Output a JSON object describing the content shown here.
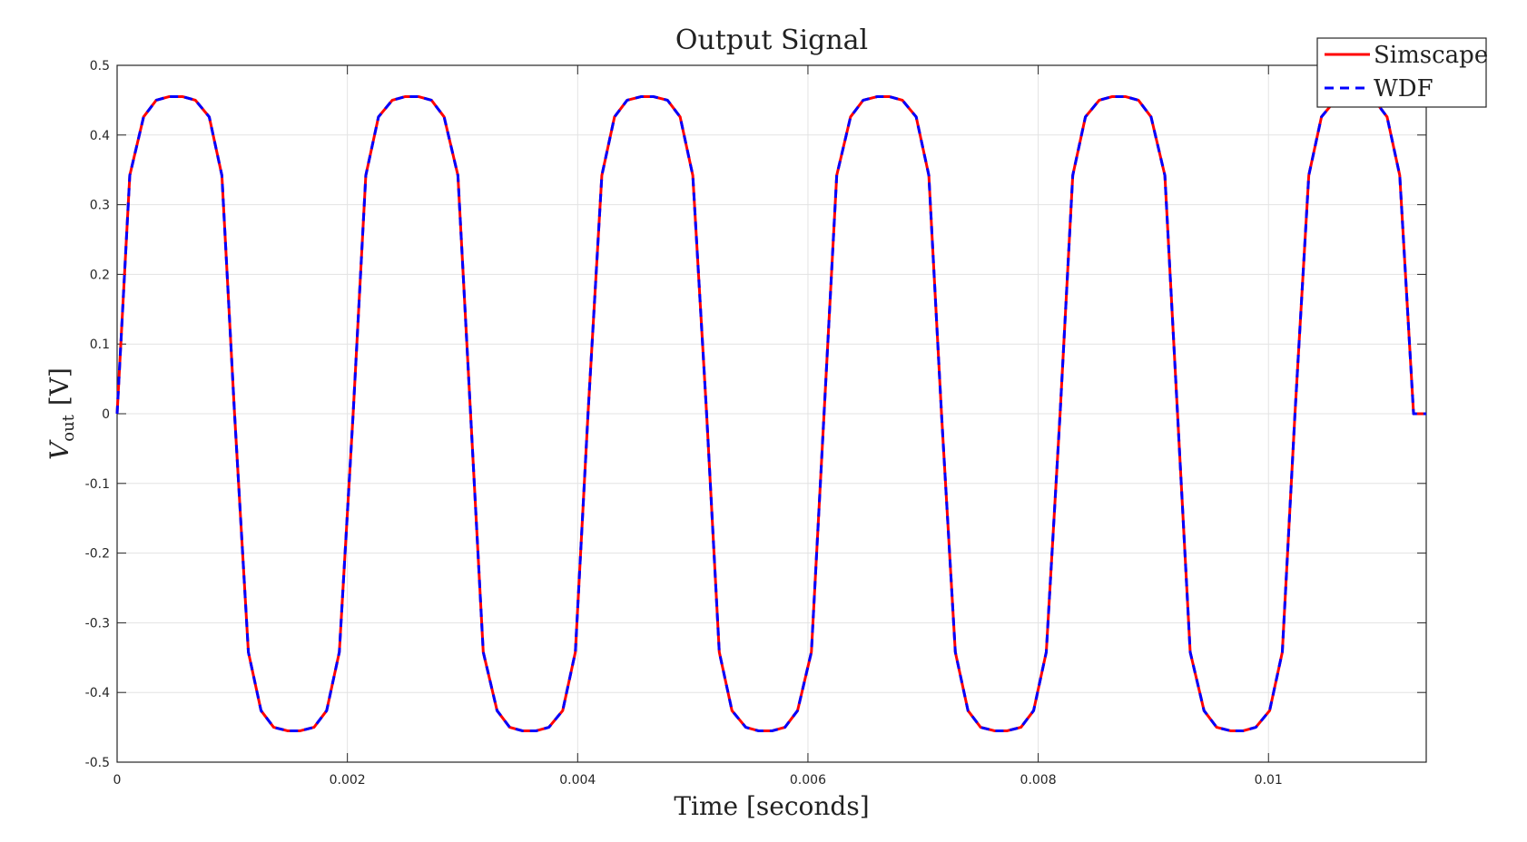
{
  "chart_data": {
    "type": "line",
    "title": "Output Signal",
    "xlabel": "Time [seconds]",
    "ylabel": {
      "symbol": "V",
      "subscript": "out",
      "unit": "[V]"
    },
    "xlim": [
      0,
      0.01137
    ],
    "ylim": [
      -0.5,
      0.5
    ],
    "xticks": [
      0,
      0.002,
      0.004,
      0.006,
      0.008,
      0.01
    ],
    "xtick_labels": [
      "0",
      "0.002",
      "0.004",
      "0.006",
      "0.008",
      "0.01"
    ],
    "yticks": [
      0.5,
      0.4,
      0.3,
      0.2,
      0.1,
      0,
      -0.1,
      -0.2,
      -0.3,
      -0.4,
      -0.5
    ],
    "ytick_labels": [
      "0.5",
      "0.4",
      "0.3",
      "0.2",
      "0.1",
      "0",
      "-0.1",
      "-0.2",
      "-0.3",
      "-0.4",
      "-0.5"
    ],
    "grid": true,
    "legend_position": "top-right",
    "series": [
      {
        "name": "Simscape",
        "color": "#ff0000",
        "line_style": "solid",
        "x": [
          0,
          0.00011,
          0.00023,
          0.00034,
          0.00045,
          0.00057,
          0.00068,
          0.0008,
          0.00091,
          0.00102,
          0.00114,
          0.00125,
          0.00136,
          0.00148,
          0.00159,
          0.00171,
          0.00182,
          0.00193,
          0.00205,
          0.00216,
          0.00227,
          0.00239,
          0.0025,
          0.00262,
          0.00273,
          0.00284,
          0.00296,
          0.00307,
          0.00318,
          0.0033,
          0.00341,
          0.00352,
          0.00364,
          0.00375,
          0.00387,
          0.00398,
          0.00409,
          0.00421,
          0.00432,
          0.00443,
          0.00455,
          0.00466,
          0.00478,
          0.00489,
          0.005,
          0.00512,
          0.00523,
          0.00534,
          0.00546,
          0.00557,
          0.00569,
          0.0058,
          0.00591,
          0.00603,
          0.00614,
          0.00625,
          0.00637,
          0.00648,
          0.0066,
          0.00671,
          0.00682,
          0.00694,
          0.00705,
          0.00716,
          0.00728,
          0.00739,
          0.0075,
          0.00762,
          0.00773,
          0.00785,
          0.00796,
          0.00807,
          0.00819,
          0.0083,
          0.00841,
          0.00853,
          0.00864,
          0.00876,
          0.00887,
          0.00898,
          0.0091,
          0.00921,
          0.00932,
          0.00944,
          0.00955,
          0.00967,
          0.00978,
          0.00989,
          0.01001,
          0.01012,
          0.01023,
          0.01035,
          0.01046,
          0.01058,
          0.01069,
          0.0108,
          0.01092,
          0.01103,
          0.01114,
          0.01126,
          0.01137
        ],
        "y": [
          0,
          0.342,
          0.426,
          0.45,
          0.455,
          0.455,
          0.45,
          0.426,
          0.342,
          0,
          -0.342,
          -0.426,
          -0.45,
          -0.455,
          -0.455,
          -0.45,
          -0.426,
          -0.342,
          0,
          0.342,
          0.426,
          0.45,
          0.455,
          0.455,
          0.45,
          0.426,
          0.342,
          0,
          -0.342,
          -0.426,
          -0.45,
          -0.455,
          -0.455,
          -0.45,
          -0.426,
          -0.342,
          0,
          0.342,
          0.426,
          0.45,
          0.455,
          0.455,
          0.45,
          0.426,
          0.342,
          0,
          -0.342,
          -0.426,
          -0.45,
          -0.455,
          -0.455,
          -0.45,
          -0.426,
          -0.342,
          0,
          0.342,
          0.426,
          0.45,
          0.455,
          0.455,
          0.45,
          0.426,
          0.342,
          0,
          -0.342,
          -0.426,
          -0.45,
          -0.455,
          -0.455,
          -0.45,
          -0.426,
          -0.342,
          0,
          0.342,
          0.426,
          0.45,
          0.455,
          0.455,
          0.45,
          0.426,
          0.342,
          0,
          -0.342,
          -0.426,
          -0.45,
          -0.455,
          -0.455,
          -0.45,
          -0.426,
          -0.342,
          0,
          0.342,
          0.426,
          0.45,
          0.455,
          0.455,
          0.45,
          0.426,
          0.342,
          0,
          0
        ]
      },
      {
        "name": "WDF",
        "color": "#0000ff",
        "line_style": "dashed",
        "x": [
          0,
          0.00011,
          0.00023,
          0.00034,
          0.00045,
          0.00057,
          0.00068,
          0.0008,
          0.00091,
          0.00102,
          0.00114,
          0.00125,
          0.00136,
          0.00148,
          0.00159,
          0.00171,
          0.00182,
          0.00193,
          0.00205,
          0.00216,
          0.00227,
          0.00239,
          0.0025,
          0.00262,
          0.00273,
          0.00284,
          0.00296,
          0.00307,
          0.00318,
          0.0033,
          0.00341,
          0.00352,
          0.00364,
          0.00375,
          0.00387,
          0.00398,
          0.00409,
          0.00421,
          0.00432,
          0.00443,
          0.00455,
          0.00466,
          0.00478,
          0.00489,
          0.005,
          0.00512,
          0.00523,
          0.00534,
          0.00546,
          0.00557,
          0.00569,
          0.0058,
          0.00591,
          0.00603,
          0.00614,
          0.00625,
          0.00637,
          0.00648,
          0.0066,
          0.00671,
          0.00682,
          0.00694,
          0.00705,
          0.00716,
          0.00728,
          0.00739,
          0.0075,
          0.00762,
          0.00773,
          0.00785,
          0.00796,
          0.00807,
          0.00819,
          0.0083,
          0.00841,
          0.00853,
          0.00864,
          0.00876,
          0.00887,
          0.00898,
          0.0091,
          0.00921,
          0.00932,
          0.00944,
          0.00955,
          0.00967,
          0.00978,
          0.00989,
          0.01001,
          0.01012,
          0.01023,
          0.01035,
          0.01046,
          0.01058,
          0.01069,
          0.0108,
          0.01092,
          0.01103,
          0.01114,
          0.01126,
          0.01137
        ],
        "y": [
          0,
          0.342,
          0.426,
          0.45,
          0.455,
          0.455,
          0.45,
          0.426,
          0.342,
          0,
          -0.342,
          -0.426,
          -0.45,
          -0.455,
          -0.455,
          -0.45,
          -0.426,
          -0.342,
          0,
          0.342,
          0.426,
          0.45,
          0.455,
          0.455,
          0.45,
          0.426,
          0.342,
          0,
          -0.342,
          -0.426,
          -0.45,
          -0.455,
          -0.455,
          -0.45,
          -0.426,
          -0.342,
          0,
          0.342,
          0.426,
          0.45,
          0.455,
          0.455,
          0.45,
          0.426,
          0.342,
          0,
          -0.342,
          -0.426,
          -0.45,
          -0.455,
          -0.455,
          -0.45,
          -0.426,
          -0.342,
          0,
          0.342,
          0.426,
          0.45,
          0.455,
          0.455,
          0.45,
          0.426,
          0.342,
          0,
          -0.342,
          -0.426,
          -0.45,
          -0.455,
          -0.455,
          -0.45,
          -0.426,
          -0.342,
          0,
          0.342,
          0.426,
          0.45,
          0.455,
          0.455,
          0.45,
          0.426,
          0.342,
          0,
          -0.342,
          -0.426,
          -0.45,
          -0.455,
          -0.455,
          -0.45,
          -0.426,
          -0.342,
          0,
          0.342,
          0.426,
          0.45,
          0.455,
          0.455,
          0.45,
          0.426,
          0.342,
          0,
          0
        ]
      }
    ]
  }
}
